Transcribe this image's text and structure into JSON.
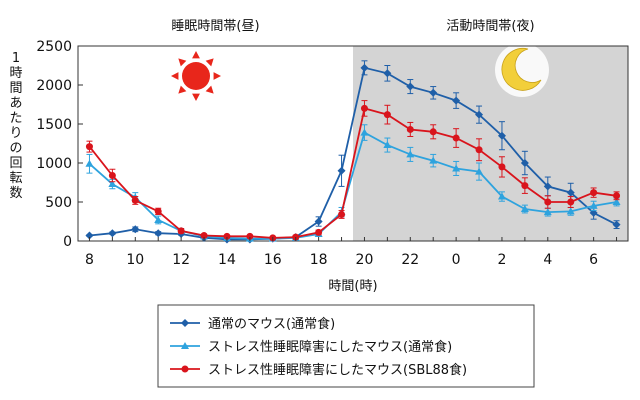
{
  "chart_data": {
    "type": "line",
    "periods": [
      {
        "label": "睡眠時間帯(昼)",
        "icon": "sun-icon",
        "background": "#ffffff"
      },
      {
        "label": "活動時間帯(夜)",
        "icon": "moon-icon",
        "background": "#d4d4d4"
      }
    ],
    "xlabel": "時間(時)",
    "ylabel": "1時間あたりの回転数",
    "ylim": [
      0,
      2500
    ],
    "yticks": [
      0,
      500,
      1000,
      1500,
      2000,
      2500
    ],
    "x": [
      "8",
      "9",
      "10",
      "11",
      "12",
      "13",
      "14",
      "15",
      "16",
      "17",
      "18",
      "19",
      "20",
      "21",
      "22",
      "23",
      "0",
      "1",
      "2",
      "3",
      "4",
      "5",
      "6",
      "7"
    ],
    "xtick_labels": [
      "8",
      "10",
      "12",
      "14",
      "16",
      "18",
      "20",
      "22",
      "0",
      "2",
      "4",
      "6"
    ],
    "series": [
      {
        "name": "通常のマウス(通常食)",
        "color": "#1f5fa8",
        "marker": "diamond",
        "values": [
          70,
          100,
          150,
          100,
          90,
          40,
          20,
          20,
          30,
          50,
          250,
          900,
          2220,
          2150,
          1980,
          1900,
          1800,
          1620,
          1350,
          1000,
          700,
          620,
          360,
          210
        ],
        "errors": [
          10,
          15,
          30,
          20,
          15,
          10,
          10,
          10,
          10,
          20,
          60,
          200,
          90,
          100,
          90,
          80,
          100,
          110,
          180,
          150,
          120,
          120,
          80,
          50
        ]
      },
      {
        "name": "ストレス性睡眠障害にしたマウス(通常食)",
        "color": "#2ea3de",
        "marker": "triangle",
        "values": [
          990,
          730,
          560,
          270,
          130,
          60,
          40,
          30,
          30,
          40,
          90,
          370,
          1390,
          1230,
          1110,
          1030,
          930,
          890,
          570,
          410,
          370,
          380,
          450,
          500
        ],
        "errors": [
          120,
          60,
          60,
          50,
          30,
          20,
          10,
          10,
          10,
          10,
          30,
          60,
          100,
          90,
          90,
          80,
          90,
          110,
          60,
          50,
          50,
          50,
          60,
          50
        ]
      },
      {
        "name": "ストレス性睡眠障害にしたマウス(SBL88食)",
        "color": "#d9141c",
        "marker": "circle",
        "values": [
          1210,
          840,
          520,
          380,
          130,
          70,
          60,
          60,
          40,
          50,
          110,
          340,
          1700,
          1620,
          1430,
          1400,
          1320,
          1170,
          950,
          710,
          500,
          500,
          620,
          580
        ],
        "errors": [
          70,
          80,
          50,
          40,
          30,
          20,
          10,
          10,
          10,
          10,
          30,
          50,
          100,
          120,
          90,
          90,
          120,
          140,
          130,
          100,
          80,
          70,
          60,
          50
        ]
      }
    ],
    "legend_placement": "bottom-center"
  }
}
